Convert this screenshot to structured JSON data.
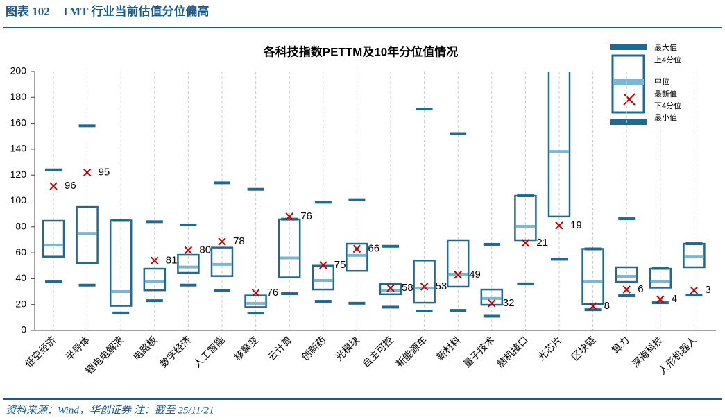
{
  "header": "图表 102　TMT 行业当前估值分位偏高",
  "footer": "资料来源：Wind，华创证券 注：截至 25/11/21",
  "chart_data": {
    "type": "box",
    "title": "各科技指数PETTM及10年分位值情况",
    "categories": [
      "低空经济",
      "半导体",
      "锂电电解液",
      "电路板",
      "数字经济",
      "人工智能",
      "核聚变",
      "云计算",
      "创新药",
      "光模块",
      "自主可控",
      "新能源车",
      "新材料",
      "量子技术",
      "脑机接口",
      "光芯片",
      "区块链",
      "算力",
      "深海科技",
      "人形机器人"
    ],
    "max": [
      124,
      158,
      85,
      84,
      81.5,
      114,
      109,
      86,
      99,
      101,
      65,
      171,
      152,
      66.5,
      104,
      205,
      63,
      86.3,
      48,
      67
    ],
    "q3": [
      84.7,
      95.4,
      85,
      47.7,
      58.4,
      64,
      27,
      85.8,
      50,
      67,
      36,
      54,
      69.7,
      31.6,
      104,
      205,
      63,
      48.8,
      47.7,
      67
    ],
    "median": [
      66,
      75,
      30,
      38,
      49,
      51,
      21,
      56,
      38.6,
      58,
      31,
      32.7,
      43.4,
      24.7,
      80.4,
      138.3,
      38,
      41.8,
      38,
      56.8
    ],
    "q1": [
      57,
      52,
      19,
      31,
      44.5,
      42,
      18,
      41,
      31.6,
      46,
      28,
      21.4,
      33.8,
      19.8,
      69.7,
      88,
      20.4,
      37.5,
      33,
      48.8
    ],
    "min": [
      37.5,
      35,
      13.5,
      23,
      35,
      31,
      13.4,
      28.4,
      22.5,
      21,
      18,
      15,
      15.5,
      11,
      36,
      55,
      16,
      26.8,
      21.4,
      27.3
    ],
    "latest": [
      111.5,
      122,
      null,
      54,
      62,
      68.6,
      29,
      88,
      50.4,
      63,
      32.7,
      33.8,
      43,
      21,
      67.6,
      81,
      18.8,
      31.6,
      24,
      31
    ],
    "percentile": [
      96,
      95,
      null,
      81,
      80,
      78,
      76,
      76,
      75,
      66,
      58,
      53,
      49,
      32,
      21,
      19,
      8,
      6,
      4,
      3
    ],
    "legend_labels": [
      "最大值",
      "上4分位",
      "中位",
      "最新值",
      "下4分位",
      "最小值"
    ],
    "ylim": [
      0,
      200
    ],
    "yticks": [
      0,
      20,
      40,
      60,
      80,
      100,
      120,
      140,
      160,
      180,
      200
    ],
    "box_color": "#1f6a93",
    "median_color": "#7bb6d3",
    "latest_color": "#c00000"
  }
}
